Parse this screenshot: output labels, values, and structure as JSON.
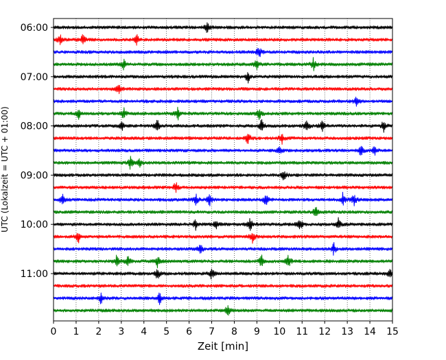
{
  "chart_data": {
    "type": "line",
    "title": "",
    "xlabel": "Zeit  [min]",
    "ylabel": "UTC (Lokalzeit = UTC + 01:00)",
    "xlim": [
      0,
      15
    ],
    "x_ticks": [
      "0",
      "1",
      "2",
      "3",
      "4",
      "5",
      "6",
      "7",
      "8",
      "9",
      "10",
      "11",
      "12",
      "13",
      "14",
      "15"
    ],
    "grid": "vertical dotted",
    "legend": "none",
    "y_tick_labels": [
      "06:00",
      "07:00",
      "08:00",
      "09:00",
      "10:00",
      "11:00"
    ],
    "trace_colors": [
      "#000000",
      "#ff0000",
      "#0000ff",
      "#008000"
    ],
    "traces": [
      {
        "label": "06:00",
        "color": "black",
        "events": [
          6.8
        ]
      },
      {
        "label": "06:15",
        "color": "red",
        "events": [
          0.3,
          1.3,
          3.7
        ]
      },
      {
        "label": "06:30",
        "color": "blue",
        "events": [
          9.1
        ]
      },
      {
        "label": "06:45",
        "color": "green",
        "events": [
          3.1,
          9.0,
          11.5
        ]
      },
      {
        "label": "07:00",
        "color": "black",
        "events": [
          8.6
        ]
      },
      {
        "label": "07:15",
        "color": "red",
        "events": [
          2.9
        ]
      },
      {
        "label": "07:30",
        "color": "blue",
        "events": [
          13.4
        ]
      },
      {
        "label": "07:45",
        "color": "green",
        "events": [
          1.1,
          3.1,
          5.5,
          9.1
        ]
      },
      {
        "label": "08:00",
        "color": "black",
        "events": [
          3.0,
          4.6,
          9.2,
          11.2,
          11.9,
          14.6
        ]
      },
      {
        "label": "08:15",
        "color": "red",
        "events": [
          8.6,
          10.1
        ]
      },
      {
        "label": "08:30",
        "color": "blue",
        "events": [
          10.0,
          13.6,
          14.2
        ]
      },
      {
        "label": "08:45",
        "color": "green",
        "events": [
          3.4,
          3.8
        ]
      },
      {
        "label": "09:00",
        "color": "black",
        "events": [
          10.2
        ]
      },
      {
        "label": "09:15",
        "color": "red",
        "events": [
          5.4
        ]
      },
      {
        "label": "09:30",
        "color": "blue",
        "events": [
          0.4,
          6.3,
          6.9,
          9.4,
          12.8,
          13.3
        ]
      },
      {
        "label": "09:45",
        "color": "green",
        "events": [
          11.6
        ]
      },
      {
        "label": "10:00",
        "color": "black",
        "events": [
          6.3,
          7.2,
          8.7,
          10.9,
          12.6
        ]
      },
      {
        "label": "10:15",
        "color": "red",
        "events": [
          1.1,
          8.8
        ]
      },
      {
        "label": "10:30",
        "color": "blue",
        "events": [
          6.5,
          12.4
        ]
      },
      {
        "label": "10:45",
        "color": "green",
        "events": [
          2.8,
          3.3,
          4.6,
          9.2,
          10.4
        ]
      },
      {
        "label": "11:00",
        "color": "black",
        "events": [
          4.6,
          7.0,
          14.9
        ]
      },
      {
        "label": "11:15",
        "color": "red",
        "events": []
      },
      {
        "label": "11:30",
        "color": "blue",
        "events": [
          2.1,
          4.7
        ]
      },
      {
        "label": "11:45",
        "color": "green",
        "events": [
          7.7
        ]
      }
    ]
  }
}
